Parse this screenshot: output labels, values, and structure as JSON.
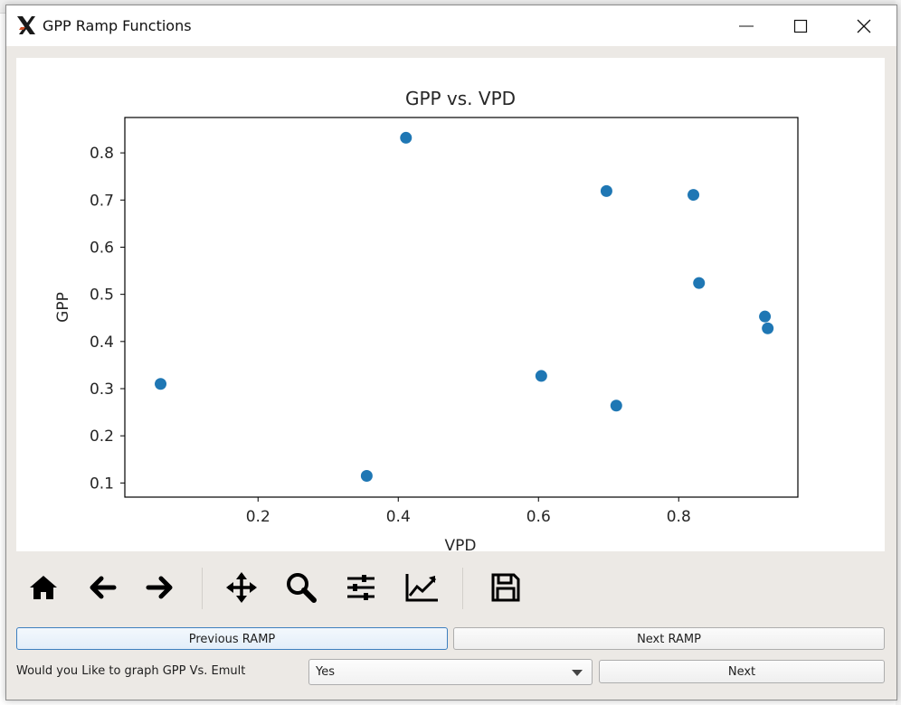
{
  "window": {
    "title": "GPP Ramp Functions",
    "icon": "x-logo-icon"
  },
  "chart_data": {
    "type": "scatter",
    "title": "GPP vs. VPD",
    "xlabel": "VPD",
    "ylabel": "GPP",
    "xlim": [
      0.01,
      0.97
    ],
    "ylim": [
      0.07,
      0.875
    ],
    "xticks": [
      0.2,
      0.4,
      0.6,
      0.8
    ],
    "xtick_labels": [
      "0.2",
      "0.4",
      "0.6",
      "0.8"
    ],
    "yticks": [
      0.1,
      0.2,
      0.3,
      0.4,
      0.5,
      0.6,
      0.7,
      0.8
    ],
    "ytick_labels": [
      "0.1",
      "0.2",
      "0.3",
      "0.4",
      "0.5",
      "0.6",
      "0.7",
      "0.8"
    ],
    "grid": false,
    "color": "#1f77b4",
    "points": [
      {
        "x": 0.061,
        "y": 0.31
      },
      {
        "x": 0.355,
        "y": 0.115
      },
      {
        "x": 0.411,
        "y": 0.832
      },
      {
        "x": 0.604,
        "y": 0.327
      },
      {
        "x": 0.697,
        "y": 0.719
      },
      {
        "x": 0.711,
        "y": 0.264
      },
      {
        "x": 0.821,
        "y": 0.711
      },
      {
        "x": 0.829,
        "y": 0.524
      },
      {
        "x": 0.923,
        "y": 0.453
      },
      {
        "x": 0.927,
        "y": 0.428
      }
    ]
  },
  "toolbar": {
    "icons": [
      "home-icon",
      "back-arrow-icon",
      "forward-arrow-icon",
      "pan-icon",
      "zoom-icon",
      "configure-subplots-icon",
      "edit-axis-icon",
      "save-icon"
    ]
  },
  "controls": {
    "previous_label": "Previous RAMP",
    "next_ramp_label": "Next RAMP",
    "question": "Would you Like to graph GPP Vs. Emult",
    "combo_value": "Yes",
    "next_label": "Next"
  }
}
